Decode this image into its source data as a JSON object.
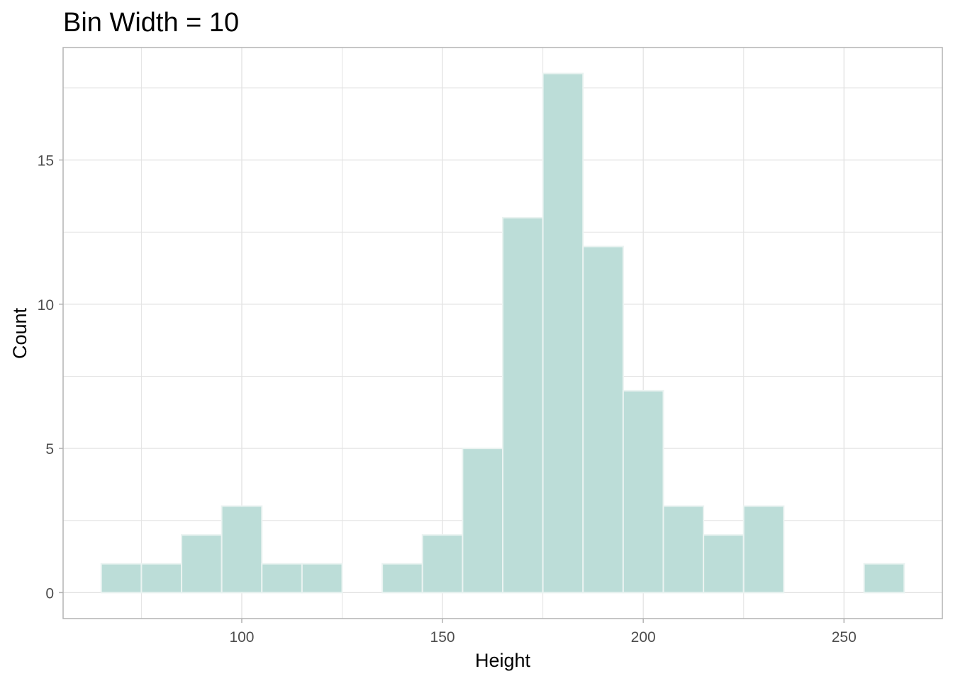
{
  "chart_data": {
    "type": "bar",
    "title": "Bin Width = 10",
    "xlabel": "Height",
    "ylabel": "Count",
    "bin_width": 10,
    "bins": [
      {
        "x0": 65,
        "x1": 75,
        "count": 1
      },
      {
        "x0": 75,
        "x1": 85,
        "count": 1
      },
      {
        "x0": 85,
        "x1": 95,
        "count": 2
      },
      {
        "x0": 95,
        "x1": 105,
        "count": 3
      },
      {
        "x0": 105,
        "x1": 115,
        "count": 1
      },
      {
        "x0": 115,
        "x1": 125,
        "count": 1
      },
      {
        "x0": 125,
        "x1": 135,
        "count": 0
      },
      {
        "x0": 135,
        "x1": 145,
        "count": 1
      },
      {
        "x0": 145,
        "x1": 155,
        "count": 2
      },
      {
        "x0": 155,
        "x1": 165,
        "count": 5
      },
      {
        "x0": 165,
        "x1": 175,
        "count": 13
      },
      {
        "x0": 175,
        "x1": 185,
        "count": 18
      },
      {
        "x0": 185,
        "x1": 195,
        "count": 12
      },
      {
        "x0": 195,
        "x1": 205,
        "count": 7
      },
      {
        "x0": 205,
        "x1": 215,
        "count": 3
      },
      {
        "x0": 215,
        "x1": 225,
        "count": 2
      },
      {
        "x0": 225,
        "x1": 235,
        "count": 3
      },
      {
        "x0": 235,
        "x1": 245,
        "count": 0
      },
      {
        "x0": 245,
        "x1": 255,
        "count": 0
      },
      {
        "x0": 255,
        "x1": 265,
        "count": 1
      }
    ],
    "xlim": [
      55.5,
      274.5
    ],
    "ylim": [
      -0.9,
      18.9
    ],
    "x_ticks": [
      100,
      150,
      200,
      250
    ],
    "x_tick_labels": [
      "100",
      "150",
      "200",
      "250"
    ],
    "y_ticks": [
      0,
      5,
      10,
      15
    ],
    "y_tick_labels": [
      "0",
      "5",
      "10",
      "15"
    ],
    "grid": true,
    "bar_fill": "#bcddd8",
    "bar_stroke": "#eaf3f1",
    "grid_color": "#e3e3e3",
    "panel_border_color": "#b3b3b3"
  }
}
